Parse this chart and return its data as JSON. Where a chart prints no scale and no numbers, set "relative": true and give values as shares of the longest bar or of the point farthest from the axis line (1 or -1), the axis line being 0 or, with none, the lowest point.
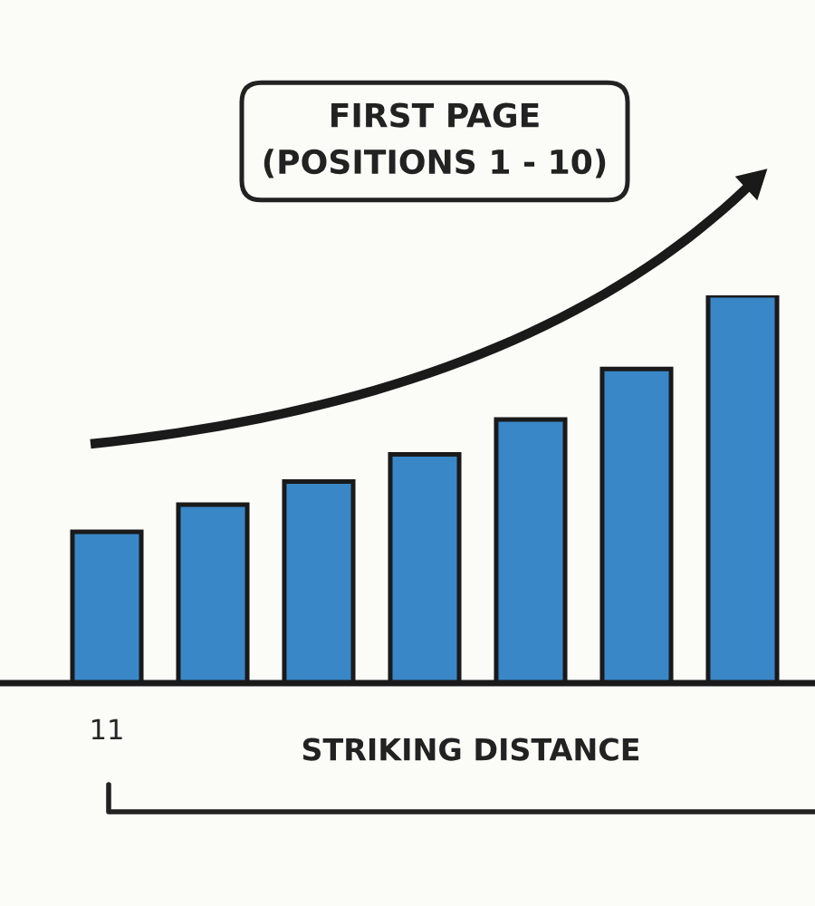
{
  "chart_data": {
    "type": "bar",
    "relative": true,
    "categories": [
      "11",
      null,
      null,
      null,
      null,
      null,
      null
    ],
    "values": [
      0.39,
      0.46,
      0.52,
      0.59,
      0.68,
      0.81,
      1
    ],
    "color": "#3a87c8",
    "tick_labels": "x",
    "annotations": [
      "FIRST PAGE\n(POSITIONS 1 - 10)",
      "STRIKING DISTANCE"
    ]
  }
}
